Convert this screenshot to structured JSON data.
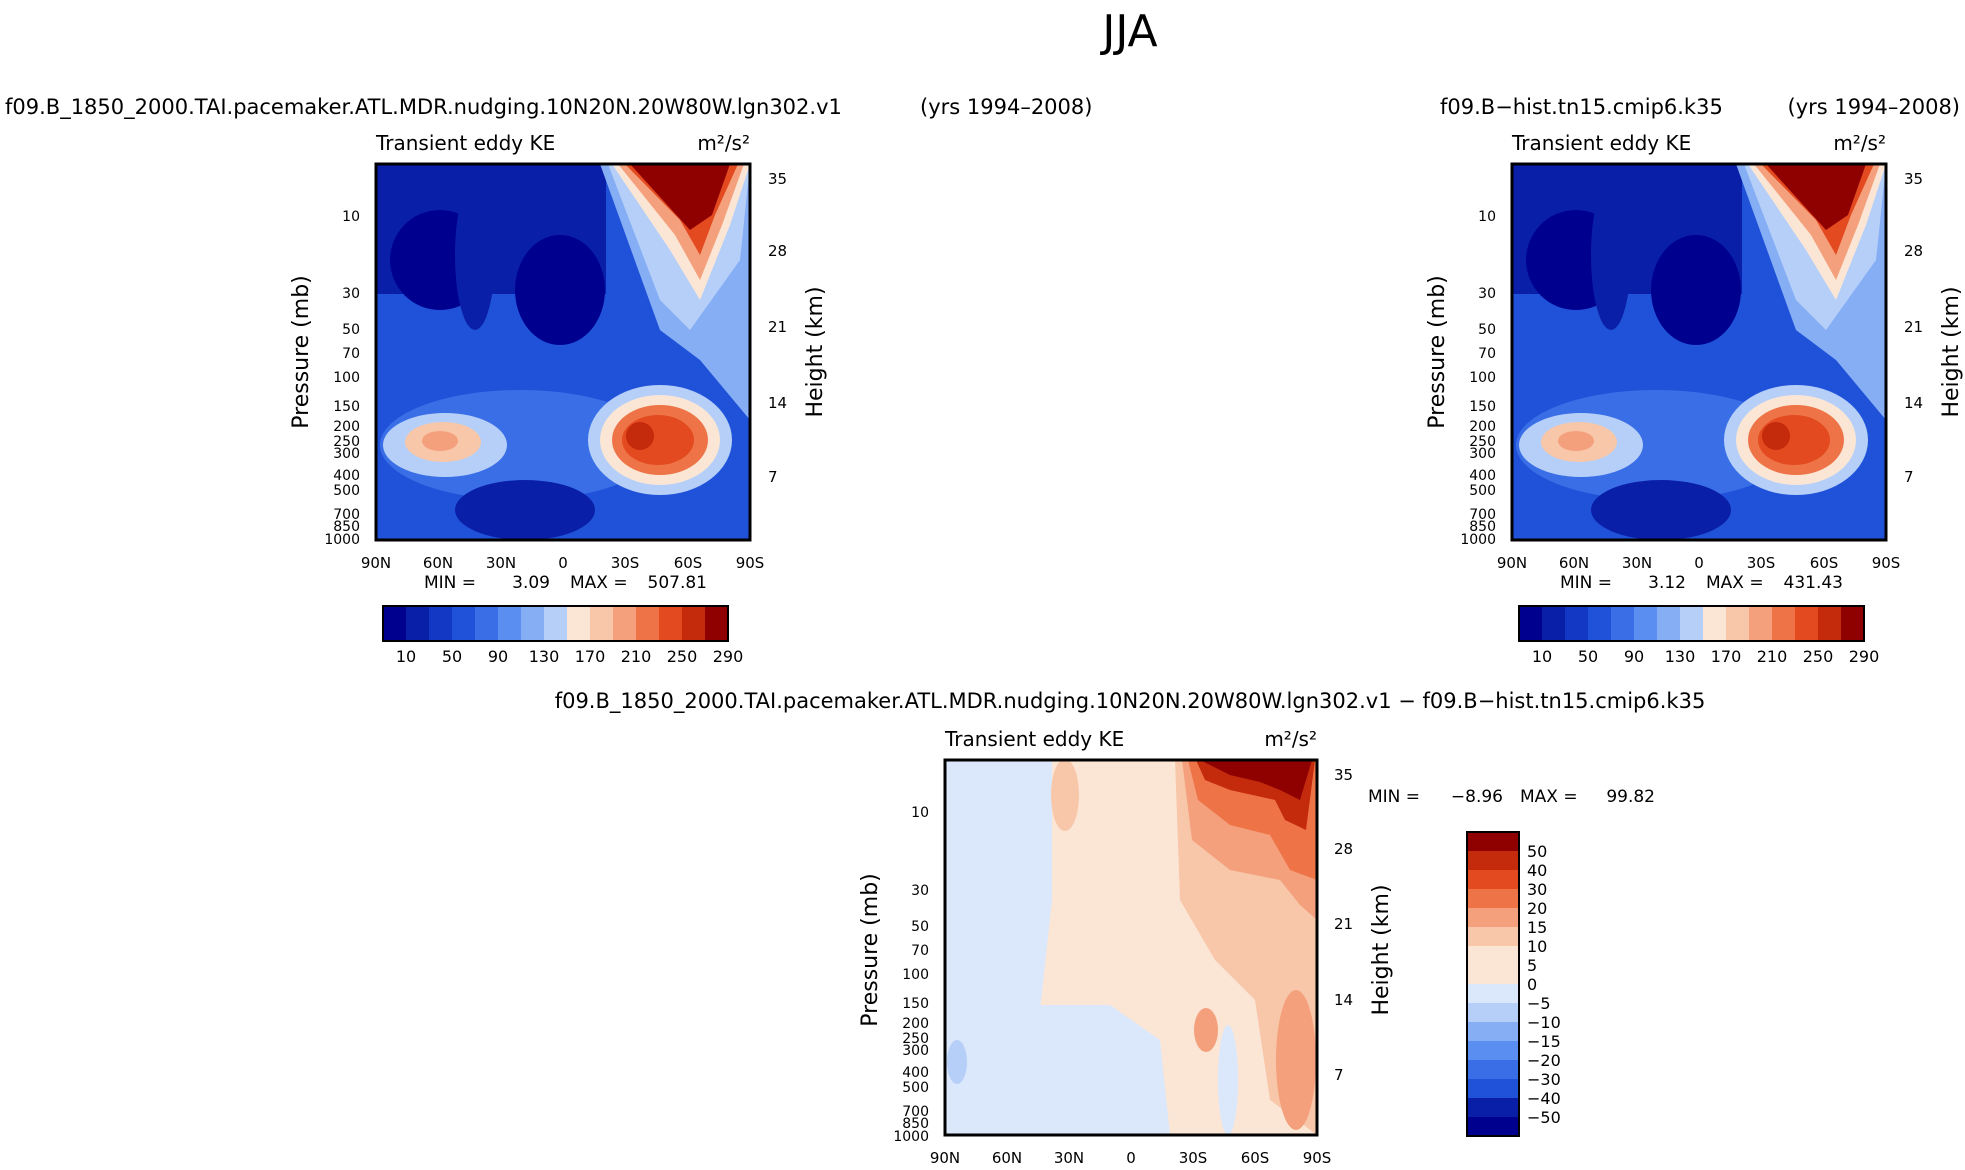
{
  "figure_title": "JJA",
  "chart_data": [
    {
      "id": "panel1",
      "type": "contour",
      "case": "f09.B_1850_2000.TAI.pacemaker.ATL.MDR.nudging.10N20N.20W80W.lgn302.v1",
      "years": "(yrs 1994–2008)",
      "variable": "Transient eddy KE",
      "units": "m²/s²",
      "xlabel": "",
      "ylabel": "Pressure (mb)",
      "ylabel_right": "Height (km)",
      "x_ticks": [
        "90N",
        "60N",
        "30N",
        "0",
        "30S",
        "60S",
        "90S"
      ],
      "y_ticks": [
        "10",
        "30",
        "50",
        "70",
        "100",
        "150",
        "200",
        "250",
        "300",
        "400",
        "500",
        "700",
        "850",
        "1000"
      ],
      "height_ticks": [
        "35",
        "28",
        "21",
        "14",
        "7"
      ],
      "stats": {
        "min_label": "MIN =",
        "min": "3.09",
        "max_label": "MAX =",
        "max": "507.81"
      },
      "contour_levels": [
        10,
        30,
        50,
        70,
        90,
        110,
        130,
        150,
        170,
        190,
        210,
        230,
        250,
        270,
        290
      ],
      "colorbar_labels": [
        "10",
        "50",
        "90",
        "130",
        "170",
        "210",
        "250",
        "290"
      ]
    },
    {
      "id": "panel2",
      "type": "contour",
      "case": "f09.B−hist.tn15.cmip6.k35",
      "years": "(yrs 1994–2008)",
      "variable": "Transient eddy KE",
      "units": "m²/s²",
      "ylabel": "Pressure (mb)",
      "ylabel_right": "Height (km)",
      "x_ticks": [
        "90N",
        "60N",
        "30N",
        "0",
        "30S",
        "60S",
        "90S"
      ],
      "y_ticks": [
        "10",
        "30",
        "50",
        "70",
        "100",
        "150",
        "200",
        "250",
        "300",
        "400",
        "500",
        "700",
        "850",
        "1000"
      ],
      "height_ticks": [
        "35",
        "28",
        "21",
        "14",
        "7"
      ],
      "stats": {
        "min_label": "MIN =",
        "min": "3.12",
        "max_label": "MAX =",
        "max": "431.43"
      },
      "contour_levels": [
        10,
        30,
        50,
        70,
        90,
        110,
        130,
        150,
        170,
        190,
        210,
        230,
        250,
        270,
        290
      ],
      "colorbar_labels": [
        "10",
        "50",
        "90",
        "130",
        "170",
        "210",
        "250",
        "290"
      ]
    },
    {
      "id": "panel3",
      "type": "contour",
      "title": "f09.B_1850_2000.TAI.pacemaker.ATL.MDR.nudging.10N20N.20W80W.lgn302.v1  −  f09.B−hist.tn15.cmip6.k35",
      "variable": "Transient eddy KE",
      "units": "m²/s²",
      "ylabel": "Pressure (mb)",
      "ylabel_right": "Height (km)",
      "x_ticks": [
        "90N",
        "60N",
        "30N",
        "0",
        "30S",
        "60S",
        "90S"
      ],
      "y_ticks": [
        "10",
        "30",
        "50",
        "70",
        "100",
        "150",
        "200",
        "250",
        "300",
        "400",
        "500",
        "700",
        "850",
        "1000"
      ],
      "height_ticks": [
        "35",
        "28",
        "21",
        "14",
        "7"
      ],
      "stats": {
        "min_label": "MIN =",
        "min": "−8.96",
        "max_label": "MAX =",
        "max": "99.82"
      },
      "contour_levels": [
        -50,
        -40,
        -30,
        -20,
        -15,
        -10,
        -5,
        0,
        5,
        10,
        15,
        20,
        30,
        40,
        50
      ],
      "colorbar_labels": [
        "50",
        "40",
        "30",
        "20",
        "15",
        "10",
        "5",
        "0",
        "−5",
        "−10",
        "−15",
        "−20",
        "−30",
        "−40",
        "−50"
      ]
    }
  ],
  "colors": {
    "seq": [
      "#00008f",
      "#0a1fa8",
      "#1238c4",
      "#1f52d8",
      "#3a6ee6",
      "#5a8ef0",
      "#86aef5",
      "#b5cff8",
      "#dbe8fb",
      "#fbe6d6",
      "#f8c7aa",
      "#f4a07c",
      "#ee7448",
      "#e34a1f",
      "#c42a0c",
      "#8f0000"
    ],
    "div": [
      "#00008f",
      "#0a1fa8",
      "#1238c4",
      "#1f52d8",
      "#3a6ee6",
      "#5a8ef0",
      "#86aef5",
      "#b5cff8",
      "#dbe8fb",
      "#fbe6d6",
      "#f8c7aa",
      "#f4a07c",
      "#ee7448",
      "#e34a1f",
      "#c42a0c",
      "#8f0000"
    ]
  }
}
